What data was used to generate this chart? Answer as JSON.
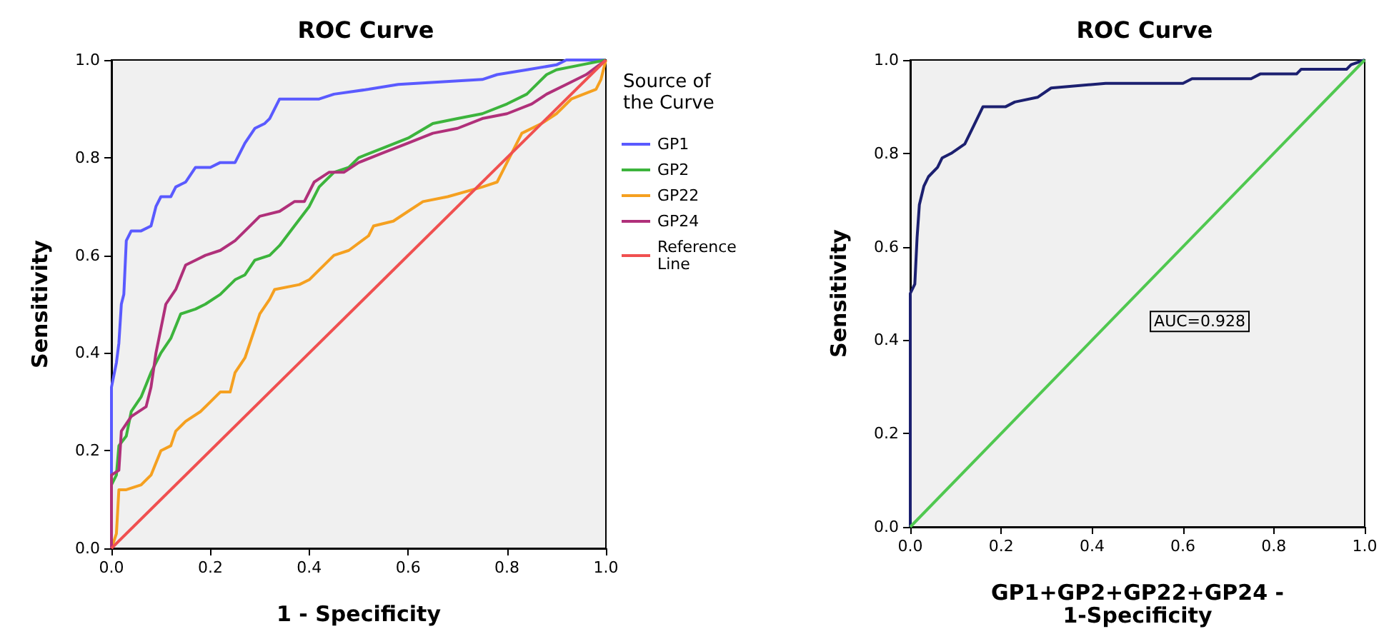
{
  "chart_data": [
    {
      "type": "line",
      "title": "ROC Curve",
      "xlabel": "1 - Specificity",
      "ylabel": "Sensitivity",
      "legend_title": "Source of the Curve",
      "legend": "right",
      "marker": "none",
      "grid": false,
      "xlim": [
        0,
        1
      ],
      "ylim": [
        0,
        1
      ],
      "xticks": [
        {
          "value": 0,
          "label": "0.0"
        },
        {
          "value": 0.2,
          "label": "0.2"
        },
        {
          "value": 0.4,
          "label": "0.4"
        },
        {
          "value": 0.6,
          "label": "0.6"
        },
        {
          "value": 0.8,
          "label": "0.8"
        },
        {
          "value": 1,
          "label": "1.0"
        }
      ],
      "yticks": [
        {
          "value": 0,
          "label": "0.0"
        },
        {
          "value": 0.2,
          "label": "0.2"
        },
        {
          "value": 0.4,
          "label": "0.4"
        },
        {
          "value": 0.6,
          "label": "0.6"
        },
        {
          "value": 0.8,
          "label": "0.8"
        },
        {
          "value": 1,
          "label": "1.0"
        }
      ],
      "series": [
        {
          "name": "GP1",
          "color": "#5a5aff",
          "x": [
            0,
            0,
            0.01,
            0.015,
            0.02,
            0.025,
            0.03,
            0.04,
            0.06,
            0.08,
            0.09,
            0.1,
            0.12,
            0.13,
            0.15,
            0.17,
            0.2,
            0.22,
            0.25,
            0.27,
            0.29,
            0.31,
            0.32,
            0.34,
            0.42,
            0.45,
            0.52,
            0.58,
            0.75,
            0.78,
            0.84,
            0.9,
            0.92,
            1
          ],
          "values": [
            0,
            0.33,
            0.38,
            0.42,
            0.5,
            0.52,
            0.63,
            0.65,
            0.65,
            0.66,
            0.7,
            0.72,
            0.72,
            0.74,
            0.75,
            0.78,
            0.78,
            0.79,
            0.79,
            0.83,
            0.86,
            0.87,
            0.88,
            0.92,
            0.92,
            0.93,
            0.94,
            0.95,
            0.96,
            0.97,
            0.98,
            0.99,
            1,
            1
          ]
        },
        {
          "name": "GP2",
          "color": "#3cb43c",
          "x": [
            0,
            0,
            0.01,
            0.015,
            0.03,
            0.04,
            0.06,
            0.08,
            0.1,
            0.12,
            0.14,
            0.17,
            0.19,
            0.22,
            0.25,
            0.27,
            0.29,
            0.32,
            0.34,
            0.37,
            0.4,
            0.42,
            0.45,
            0.48,
            0.5,
            0.55,
            0.6,
            0.65,
            0.7,
            0.75,
            0.8,
            0.84,
            0.86,
            0.88,
            0.9,
            0.95,
            1
          ],
          "values": [
            0,
            0.13,
            0.15,
            0.21,
            0.23,
            0.28,
            0.31,
            0.36,
            0.4,
            0.43,
            0.48,
            0.49,
            0.5,
            0.52,
            0.55,
            0.56,
            0.59,
            0.6,
            0.62,
            0.66,
            0.7,
            0.74,
            0.77,
            0.78,
            0.8,
            0.82,
            0.84,
            0.87,
            0.88,
            0.89,
            0.91,
            0.93,
            0.95,
            0.97,
            0.98,
            0.99,
            1
          ]
        },
        {
          "name": "GP22",
          "color": "#f5a020",
          "x": [
            0,
            0.01,
            0.015,
            0.03,
            0.06,
            0.08,
            0.1,
            0.12,
            0.13,
            0.15,
            0.18,
            0.2,
            0.22,
            0.24,
            0.25,
            0.27,
            0.29,
            0.3,
            0.32,
            0.33,
            0.38,
            0.4,
            0.42,
            0.45,
            0.48,
            0.52,
            0.53,
            0.57,
            0.6,
            0.63,
            0.68,
            0.75,
            0.78,
            0.8,
            0.83,
            0.87,
            0.9,
            0.93,
            0.98,
            0.99,
            1
          ],
          "values": [
            0,
            0.03,
            0.12,
            0.12,
            0.13,
            0.15,
            0.2,
            0.21,
            0.24,
            0.26,
            0.28,
            0.3,
            0.32,
            0.32,
            0.36,
            0.39,
            0.45,
            0.48,
            0.51,
            0.53,
            0.54,
            0.55,
            0.57,
            0.6,
            0.61,
            0.64,
            0.66,
            0.67,
            0.69,
            0.71,
            0.72,
            0.74,
            0.75,
            0.79,
            0.85,
            0.87,
            0.89,
            0.92,
            0.94,
            0.96,
            1
          ]
        },
        {
          "name": "GP24",
          "color": "#b0307a",
          "x": [
            0,
            0,
            0.015,
            0.02,
            0.04,
            0.07,
            0.08,
            0.09,
            0.1,
            0.11,
            0.13,
            0.15,
            0.17,
            0.19,
            0.22,
            0.25,
            0.28,
            0.3,
            0.34,
            0.37,
            0.39,
            0.41,
            0.44,
            0.47,
            0.5,
            0.55,
            0.6,
            0.65,
            0.7,
            0.75,
            0.8,
            0.85,
            0.88,
            0.92,
            0.96,
            1
          ],
          "values": [
            0,
            0.15,
            0.16,
            0.24,
            0.27,
            0.29,
            0.33,
            0.4,
            0.45,
            0.5,
            0.53,
            0.58,
            0.59,
            0.6,
            0.61,
            0.63,
            0.66,
            0.68,
            0.69,
            0.71,
            0.71,
            0.75,
            0.77,
            0.77,
            0.79,
            0.81,
            0.83,
            0.85,
            0.86,
            0.88,
            0.89,
            0.91,
            0.93,
            0.95,
            0.97,
            1
          ]
        },
        {
          "name": "Reference Line",
          "color": "#f05050",
          "x": [
            0,
            1
          ],
          "values": [
            0,
            1
          ]
        }
      ]
    },
    {
      "type": "line",
      "title": "ROC Curve",
      "xlabel": "GP1+GP2+GP22+GP24 -\n1-Specificity",
      "ylabel": "Sensitivity",
      "legend": false,
      "marker": "none",
      "grid": false,
      "annotations": [
        "AUC=0.928"
      ],
      "xlim": [
        0,
        1
      ],
      "ylim": [
        0,
        1
      ],
      "xticks": [
        {
          "value": 0,
          "label": "0.0"
        },
        {
          "value": 0.2,
          "label": "0.2"
        },
        {
          "value": 0.4,
          "label": "0.4"
        },
        {
          "value": 0.6,
          "label": "0.6"
        },
        {
          "value": 0.8,
          "label": "0.8"
        },
        {
          "value": 1,
          "label": "1.0"
        }
      ],
      "yticks": [
        {
          "value": 0,
          "label": "0.0"
        },
        {
          "value": 0.2,
          "label": "0.2"
        },
        {
          "value": 0.4,
          "label": "0.4"
        },
        {
          "value": 0.6,
          "label": "0.6"
        },
        {
          "value": 0.8,
          "label": "0.8"
        },
        {
          "value": 1,
          "label": "1.0"
        }
      ],
      "series": [
        {
          "color": "#1c2070",
          "x": [
            0,
            0,
            0.01,
            0.015,
            0.02,
            0.03,
            0.04,
            0.06,
            0.07,
            0.09,
            0.12,
            0.13,
            0.14,
            0.16,
            0.21,
            0.23,
            0.28,
            0.31,
            0.43,
            0.6,
            0.62,
            0.75,
            0.77,
            0.85,
            0.86,
            0.96,
            0.97,
            1
          ],
          "values": [
            0,
            0.5,
            0.52,
            0.62,
            0.69,
            0.73,
            0.75,
            0.77,
            0.79,
            0.8,
            0.82,
            0.84,
            0.86,
            0.9,
            0.9,
            0.91,
            0.92,
            0.94,
            0.95,
            0.95,
            0.96,
            0.96,
            0.97,
            0.97,
            0.98,
            0.98,
            0.99,
            1
          ]
        },
        {
          "color": "#50c850",
          "x": [
            0,
            1
          ],
          "values": [
            0,
            1
          ]
        }
      ]
    }
  ]
}
